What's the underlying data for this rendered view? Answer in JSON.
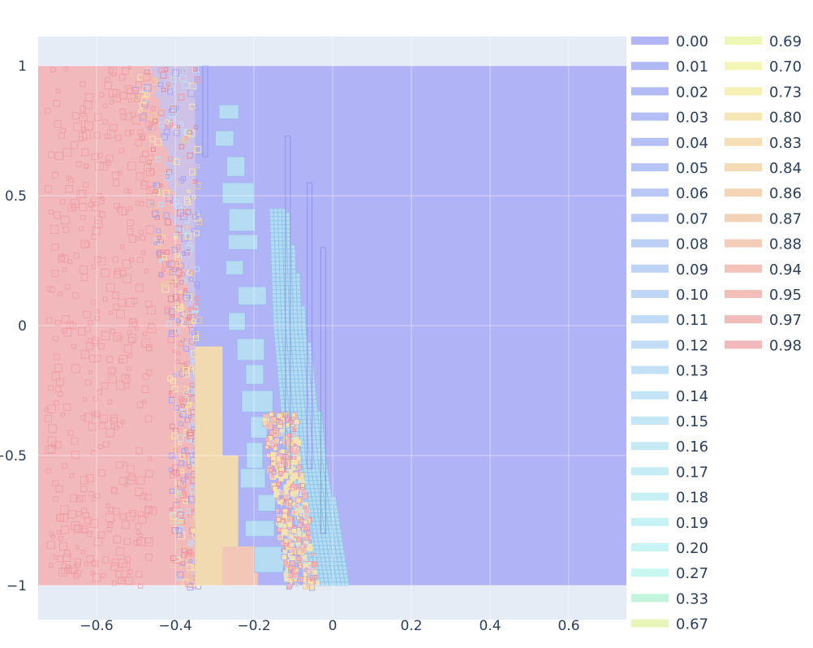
{
  "chart_data": {
    "type": "heatmap",
    "title": "",
    "xlabel": "",
    "ylabel": "",
    "xlim": [
      -0.8,
      0.78
    ],
    "ylim": [
      -1.12,
      1.12
    ],
    "plot_range": {
      "x": [
        -0.78,
        0.78
      ],
      "y": [
        -1.0,
        1.0
      ]
    },
    "x_ticks": [
      -0.6,
      -0.4,
      -0.2,
      0,
      0.2,
      0.4,
      0.6
    ],
    "x_tick_labels": [
      "−0.6",
      "−0.4",
      "−0.2",
      "0",
      "0.2",
      "0.4",
      "0.6"
    ],
    "y_ticks": [
      1,
      0.5,
      0,
      -0.5,
      -1
    ],
    "y_tick_labels": [
      "1",
      "0.5",
      "0",
      "−0.5",
      "−1"
    ],
    "grid": true,
    "legend_position": "right",
    "legend_columns": 2,
    "colors": {
      "low": "#b0b4f7",
      "high": "#f2b9bd",
      "mid_orange": "#f1d9b0",
      "light_blue": "#b6dcf4",
      "background": "#e5ecf6",
      "grid": "#ffffff"
    },
    "levels": [
      {
        "label": "0.00",
        "color": "#b0b6f6"
      },
      {
        "label": "0.01",
        "color": "#b1b8f6"
      },
      {
        "label": "0.02",
        "color": "#b2baf6"
      },
      {
        "label": "0.03",
        "color": "#b3bdf6"
      },
      {
        "label": "0.04",
        "color": "#b5c0f6"
      },
      {
        "label": "0.05",
        "color": "#b6c4f6"
      },
      {
        "label": "0.06",
        "color": "#b8c7f6"
      },
      {
        "label": "0.07",
        "color": "#bacbf6"
      },
      {
        "label": "0.08",
        "color": "#bcd0f6"
      },
      {
        "label": "0.09",
        "color": "#bdd4f6"
      },
      {
        "label": "0.10",
        "color": "#bed7f6"
      },
      {
        "label": "0.11",
        "color": "#bfdbf6"
      },
      {
        "label": "0.12",
        "color": "#c1def6"
      },
      {
        "label": "0.13",
        "color": "#c2e1f6"
      },
      {
        "label": "0.14",
        "color": "#c3e4f6"
      },
      {
        "label": "0.15",
        "color": "#c4e7f6"
      },
      {
        "label": "0.16",
        "color": "#c5eaf6"
      },
      {
        "label": "0.17",
        "color": "#c6edf6"
      },
      {
        "label": "0.18",
        "color": "#c7f0f6"
      },
      {
        "label": "0.19",
        "color": "#c7f2f5"
      },
      {
        "label": "0.20",
        "color": "#c8f4f5"
      },
      {
        "label": "0.27",
        "color": "#c6f8f1"
      },
      {
        "label": "0.33",
        "color": "#c2f5db"
      },
      {
        "label": "0.67",
        "color": "#e6f5b8"
      },
      {
        "label": "0.69",
        "color": "#eef7b6"
      },
      {
        "label": "0.70",
        "color": "#f3f6b4"
      },
      {
        "label": "0.73",
        "color": "#f6f1b3"
      },
      {
        "label": "0.80",
        "color": "#f7e6b5"
      },
      {
        "label": "0.83",
        "color": "#f6dfb5"
      },
      {
        "label": "0.84",
        "color": "#f5dcb6"
      },
      {
        "label": "0.86",
        "color": "#f4d6b6"
      },
      {
        "label": "0.87",
        "color": "#f4d2b7"
      },
      {
        "label": "0.88",
        "color": "#f3cdb8"
      },
      {
        "label": "0.94",
        "color": "#f2c2b8"
      },
      {
        "label": "0.95",
        "color": "#f2c0b9"
      },
      {
        "label": "0.97",
        "color": "#f2bcba"
      },
      {
        "label": "0.98",
        "color": "#f2b9bc"
      }
    ],
    "regions": {
      "red_boundary_x": -0.35,
      "lower_left_orange": {
        "x": [
          -0.35,
          -0.28
        ],
        "y": [
          -1.0,
          -0.08
        ]
      },
      "blue_band": [
        {
          "y": 0.45,
          "x": [
            -0.16,
            -0.12
          ]
        },
        {
          "y": 0.0,
          "x": [
            -0.15,
            -0.07
          ]
        },
        {
          "y": -0.5,
          "x": [
            -0.12,
            -0.02
          ]
        },
        {
          "y": -1.0,
          "x": [
            -0.07,
            0.04
          ]
        }
      ],
      "left_edge_band": [
        {
          "y": 1.0,
          "x": -0.46
        },
        {
          "y": 0.5,
          "x": -0.41
        },
        {
          "y": 0.0,
          "x": -0.36
        },
        {
          "y": -1.0,
          "x": -0.35
        }
      ]
    }
  }
}
